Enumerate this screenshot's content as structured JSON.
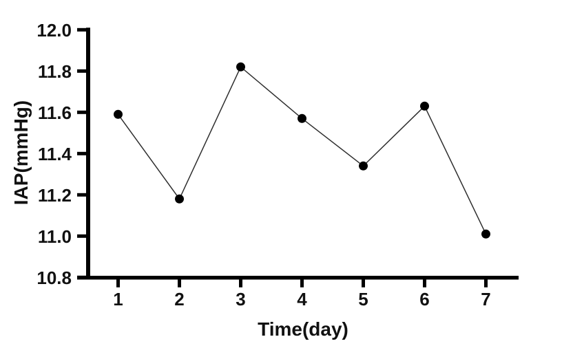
{
  "chart_data": {
    "type": "line",
    "title": "",
    "xlabel": "Time(day)",
    "ylabel": "IAP(mmHg)",
    "x": [
      1,
      2,
      3,
      4,
      5,
      6,
      7
    ],
    "xtick_labels": [
      "1",
      "2",
      "3",
      "4",
      "5",
      "6",
      "7"
    ],
    "series": [
      {
        "name": "IAP",
        "values": [
          11.59,
          11.18,
          11.82,
          11.57,
          11.34,
          11.63,
          11.01
        ]
      }
    ],
    "ylim": [
      10.8,
      12.0
    ],
    "yticks": [
      12.0,
      11.8,
      11.6,
      11.4,
      11.2,
      11.0,
      10.8
    ],
    "ytick_labels": [
      "12.0",
      "11.8",
      "11.6",
      "11.4",
      "11.2",
      "11.0",
      "10.8"
    ],
    "grid": false,
    "legend": "none",
    "marker": "circle",
    "colors": {
      "background": "#ffffff",
      "axis": "#000000",
      "line": "#2e2e2e",
      "marker": "#000000",
      "text": "#111111"
    }
  }
}
